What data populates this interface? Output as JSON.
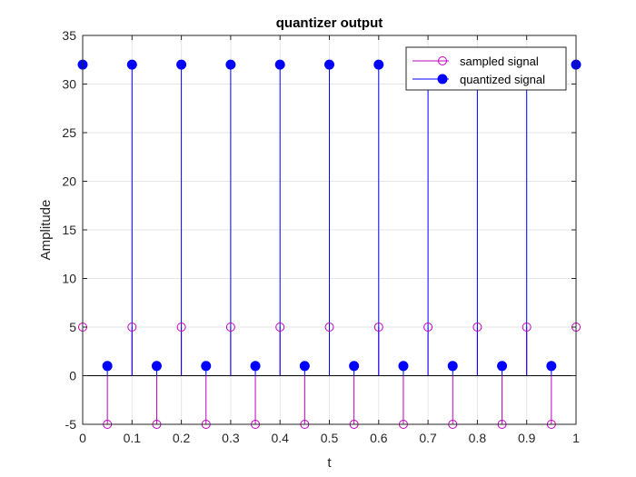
{
  "chart_data": {
    "type": "stem",
    "title": "quantizer output",
    "xlabel": "t",
    "ylabel": "Amplitude",
    "xlim": [
      0,
      1
    ],
    "ylim": [
      -5,
      35
    ],
    "xticks": [
      0,
      0.1,
      0.2,
      0.3,
      0.4,
      0.5,
      0.6,
      0.7,
      0.8,
      0.9,
      1
    ],
    "xtick_labels": [
      "0",
      "0.1",
      "0.2",
      "0.3",
      "0.4",
      "0.5",
      "0.6",
      "0.7",
      "0.8",
      "0.9",
      "1"
    ],
    "yticks": [
      -5,
      0,
      5,
      10,
      15,
      20,
      25,
      30,
      35
    ],
    "ytick_labels": [
      "-5",
      "0",
      "5",
      "10",
      "15",
      "20",
      "25",
      "30",
      "35"
    ],
    "grid": true,
    "legend": "top-right",
    "x": [
      0,
      0.05,
      0.1,
      0.15,
      0.2,
      0.25,
      0.3,
      0.35,
      0.4,
      0.45,
      0.5,
      0.55,
      0.6,
      0.65,
      0.7,
      0.75,
      0.8,
      0.85,
      0.9,
      0.95,
      1
    ],
    "series": [
      {
        "name": "sampled signal",
        "color": "#c000c0",
        "marker": "open-circle",
        "values": [
          5,
          -5,
          5,
          -5,
          5,
          -5,
          5,
          -5,
          5,
          -5,
          5,
          -5,
          5,
          -5,
          5,
          -5,
          5,
          -5,
          5,
          -5,
          5
        ]
      },
      {
        "name": "quantized signal",
        "color": "#0000ff",
        "marker": "filled-circle",
        "values": [
          32,
          1,
          32,
          1,
          32,
          1,
          32,
          1,
          32,
          1,
          32,
          1,
          32,
          1,
          32,
          1,
          32,
          1,
          32,
          1,
          32
        ]
      }
    ]
  }
}
